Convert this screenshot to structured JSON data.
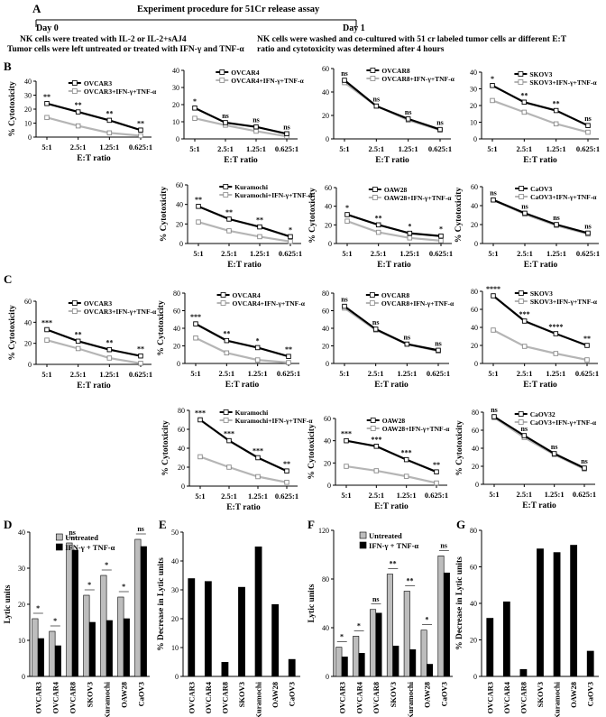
{
  "panelA": {
    "letter": "A",
    "title": "Experiment procedure for 51Cr release assay",
    "day0": "Day 0",
    "day1": "Day 1",
    "left1": "NK cells were treated with IL-2 or IL-2+sAJ4",
    "left2": "Tumor cells were left untreated or treated with IFN-γ and TNF-α",
    "right1": "NK cells were washed and co-cultured with 51 cr labeled tumor cells ar different E:T",
    "right2": "ratio and cytotoxicity was determined after 4 hours"
  },
  "colors": {
    "untreated": "#000000",
    "treated": "#b5b5b5"
  },
  "legend_suffix": "+IFN-γ+TNF-α",
  "chart_data": [
    {
      "panel": "B",
      "type": "line",
      "cell": "OVCAR3",
      "xlabel": "E:T ratio",
      "ylabel": "% Cytotoxicity",
      "categories": [
        "5:1",
        "2.5:1",
        "1.25:1",
        "0.625:1"
      ],
      "ylim": [
        0,
        40
      ],
      "yticks": [
        "0",
        "10",
        "20",
        "30",
        "40"
      ],
      "series": [
        {
          "name": "OVCAR3",
          "values": [
            24,
            18,
            12,
            5
          ]
        },
        {
          "name": "OVCAR3+IFN-γ+TNF-α",
          "values": [
            14,
            8,
            3,
            1
          ]
        }
      ],
      "sig": [
        "**",
        "**",
        "**",
        "**"
      ]
    },
    {
      "panel": "B",
      "type": "line",
      "cell": "OVCAR4",
      "xlabel": "E:T ratio",
      "ylabel": "",
      "categories": [
        "5:1",
        "2.5:1",
        "1.25:1",
        "0.625:1"
      ],
      "ylim": [
        0,
        40
      ],
      "yticks": [
        "0",
        "10",
        "20",
        "30",
        "40"
      ],
      "series": [
        {
          "name": "OVCAR4",
          "values": [
            18,
            9.5,
            7,
            3
          ]
        },
        {
          "name": "OVCAR4+IFN-γ+TNF-α",
          "values": [
            12,
            8,
            4.5,
            1.5
          ]
        }
      ],
      "sig": [
        "*",
        "ns",
        "ns",
        "ns"
      ]
    },
    {
      "panel": "B",
      "type": "line",
      "cell": "OVCAR8",
      "xlabel": "E:T ratio",
      "ylabel": "",
      "categories": [
        "5:1",
        "2.5:1",
        "1.25:1",
        "0.625:1"
      ],
      "ylim": [
        0,
        60
      ],
      "yticks": [
        "0",
        "20",
        "40",
        "60"
      ],
      "series": [
        {
          "name": "OVCAR8",
          "values": [
            50,
            28,
            17,
            8
          ]
        },
        {
          "name": "OVCAR8+IFN-γ+TNF-α",
          "values": [
            48,
            28,
            16,
            7.5
          ]
        }
      ],
      "sig": [
        "ns",
        "ns",
        "ns",
        "ns"
      ]
    },
    {
      "panel": "B",
      "type": "line",
      "cell": "SKOV3",
      "xlabel": "E:T ratio",
      "ylabel": "",
      "categories": [
        "5:1",
        "2.5:1",
        "1.25:1",
        "0.625:1"
      ],
      "ylim": [
        0,
        40
      ],
      "yticks": [
        "0",
        "10",
        "20",
        "30",
        "40"
      ],
      "series": [
        {
          "name": "SKOV3",
          "values": [
            32,
            22,
            17,
            8
          ]
        },
        {
          "name": "SKOV3+IFN-γ+TNF-α",
          "values": [
            23,
            16,
            9,
            4
          ]
        }
      ],
      "sig": [
        "*",
        "**",
        "**",
        "ns"
      ]
    },
    {
      "panel": "B",
      "type": "line",
      "cell": "Kuramochi",
      "xlabel": "E:T ratio",
      "ylabel": "% Cytotoxicity",
      "categories": [
        "5:1",
        "2.5:1",
        "1.25:1",
        "0.625:1"
      ],
      "ylim": [
        0,
        60
      ],
      "yticks": [
        "0",
        "20",
        "40",
        "60"
      ],
      "series": [
        {
          "name": "Kuramochi",
          "values": [
            38,
            25,
            17,
            7
          ]
        },
        {
          "name": "Kuramochi+IFN-γ+TNF-α",
          "values": [
            22,
            13,
            7,
            2
          ]
        }
      ],
      "sig": [
        "**",
        "**",
        "**",
        "*"
      ]
    },
    {
      "panel": "B",
      "type": "line",
      "cell": "OAW28",
      "xlabel": "E:T ratio",
      "ylabel": "% Cytotoxicity",
      "categories": [
        "5:1",
        "2.5:1",
        "1.25:1",
        "0.625:1"
      ],
      "ylim": [
        0,
        60
      ],
      "yticks": [
        "0",
        "20",
        "40",
        "60"
      ],
      "series": [
        {
          "name": "OAW28",
          "values": [
            31,
            20,
            11,
            8
          ]
        },
        {
          "name": "OAW28+IFN-γ+TNF-α",
          "values": [
            24,
            12,
            6,
            3
          ]
        }
      ],
      "sig": [
        "*",
        "**",
        "*",
        "*"
      ]
    },
    {
      "panel": "B",
      "type": "line",
      "cell": "CaOV3",
      "xlabel": "E:T ratio",
      "ylabel": "% Cytotoxicity",
      "categories": [
        "5:1",
        "2.5:1",
        "1.25:1",
        "0.625:1"
      ],
      "ylim": [
        0,
        60
      ],
      "yticks": [
        "0",
        "20",
        "40",
        "60"
      ],
      "series": [
        {
          "name": "CaOV3",
          "values": [
            46,
            32,
            20,
            11
          ]
        },
        {
          "name": "CaOV3+IFN-γ+TNF-α",
          "values": [
            46,
            31,
            19,
            10
          ]
        }
      ],
      "sig": [
        "ns",
        "ns",
        "ns",
        "ns"
      ]
    },
    {
      "panel": "C",
      "type": "line",
      "cell": "OVCAR3",
      "xlabel": "E:T ratio",
      "ylabel": "% Cytotoxicity",
      "categories": [
        "5:1",
        "2.5:1",
        "1.25:1",
        "0.625:1"
      ],
      "ylim": [
        0,
        60
      ],
      "yticks": [
        "0",
        "20",
        "40",
        "60"
      ],
      "series": [
        {
          "name": "OVCAR3",
          "values": [
            33,
            22,
            14,
            8
          ]
        },
        {
          "name": "OVCAR3+IFN-γ+TNF-α",
          "values": [
            23,
            15,
            6,
            1
          ]
        }
      ],
      "sig": [
        "***",
        "**",
        "**",
        "**"
      ]
    },
    {
      "panel": "C",
      "type": "line",
      "cell": "OVCAR4",
      "xlabel": "E:T ratio",
      "ylabel": "% Cytotoxicity",
      "categories": [
        "5:1",
        "2.5:1",
        "1.25:1",
        "0.625:1"
      ],
      "ylim": [
        0,
        80
      ],
      "yticks": [
        "0",
        "20",
        "40",
        "60",
        "80"
      ],
      "series": [
        {
          "name": "OVCAR4",
          "values": [
            45,
            26,
            18,
            8
          ]
        },
        {
          "name": "OVCAR4+IFN-γ+TNF-α",
          "values": [
            29,
            12,
            4,
            1
          ]
        }
      ],
      "sig": [
        "***",
        "**",
        "*",
        "**"
      ]
    },
    {
      "panel": "C",
      "type": "line",
      "cell": "OVCAR8",
      "xlabel": "E:T ratio",
      "ylabel": "",
      "categories": [
        "5:1",
        "2.5:1",
        "1.25:1",
        "0.625:1"
      ],
      "ylim": [
        0,
        80
      ],
      "yticks": [
        "0",
        "20",
        "40",
        "60",
        "80"
      ],
      "series": [
        {
          "name": "OVCAR8",
          "values": [
            65,
            39,
            22,
            15
          ]
        },
        {
          "name": "OVCAR8+IFN-γ+TNF-α",
          "values": [
            63,
            38,
            22,
            14
          ]
        }
      ],
      "sig": [
        "ns",
        "ns",
        "ns",
        "ns"
      ]
    },
    {
      "panel": "C",
      "type": "line",
      "cell": "SKOV3",
      "xlabel": "E:T ratio",
      "ylabel": "",
      "categories": [
        "5:1",
        "2.5:1",
        "1.25:1",
        "0.625:1"
      ],
      "ylim": [
        0,
        80
      ],
      "yticks": [
        "0",
        "20",
        "40",
        "60",
        "80"
      ],
      "series": [
        {
          "name": "SKOV3",
          "values": [
            75,
            47,
            33,
            20
          ]
        },
        {
          "name": "SKOV3+IFN-γ+TNF-α",
          "values": [
            37,
            19,
            11,
            4
          ]
        }
      ],
      "sig": [
        "****",
        "***",
        "****",
        "**"
      ]
    },
    {
      "panel": "C",
      "type": "line",
      "cell": "Kuramochi",
      "xlabel": "E:T ratio",
      "ylabel": "% Cytotoxicity",
      "categories": [
        "5:1",
        "2.5:1",
        "1.25:1",
        "0.625:1"
      ],
      "ylim": [
        0,
        80
      ],
      "yticks": [
        "0",
        "20",
        "40",
        "60",
        "80"
      ],
      "series": [
        {
          "name": "Kuramochi",
          "values": [
            70,
            48,
            30,
            16
          ]
        },
        {
          "name": "Kuramochi+IFN-γ+TNF-α",
          "values": [
            31,
            20,
            10,
            4
          ]
        }
      ],
      "sig": [
        "***",
        "***",
        "***",
        "**"
      ]
    },
    {
      "panel": "C",
      "type": "line",
      "cell": "OAW28",
      "xlabel": "E:T ratio",
      "ylabel": "% Cytotoxicity",
      "categories": [
        "5:1",
        "2.5:1",
        "1.25:1",
        "0.625:1"
      ],
      "ylim": [
        0,
        60
      ],
      "yticks": [
        "0",
        "20",
        "40",
        "60"
      ],
      "series": [
        {
          "name": "OAW28",
          "values": [
            40,
            35,
            23,
            12
          ]
        },
        {
          "name": "OAW28+IFN-γ+TNF-α",
          "values": [
            17,
            13,
            8,
            2
          ]
        }
      ],
      "sig": [
        "***",
        "***",
        "***",
        "**"
      ]
    },
    {
      "panel": "C",
      "type": "line",
      "cell": "CaOV32",
      "xlabel": "E:T ratio",
      "ylabel": "% Cytotoxicity",
      "categories": [
        "5:1",
        "2.5:1",
        "1.25:1",
        "0.625:1"
      ],
      "ylim": [
        0,
        80
      ],
      "yticks": [
        "0",
        "20",
        "40",
        "60",
        "80"
      ],
      "series": [
        {
          "name": "CaOV32",
          "values": [
            75,
            54,
            34,
            18
          ]
        },
        {
          "name": "CaOV3+IFN-γ+TNF-α",
          "values": [
            74,
            52,
            33,
            17
          ]
        }
      ],
      "sig": [
        "ns",
        "ns",
        "ns",
        "ns"
      ]
    },
    {
      "panel": "D",
      "type": "bar",
      "ylabel": "Lytic units",
      "categories": [
        "OVCAR3",
        "OVCAR4",
        "OVCAR8",
        "SKOV3",
        "Kuramochi",
        "OAW28",
        "CaOV3"
      ],
      "ylim": [
        0,
        40
      ],
      "yticks": [
        "0",
        "10",
        "20",
        "30",
        "40"
      ],
      "legend": [
        "Untreated",
        "IFN-γ + TNF-α"
      ],
      "series": [
        {
          "name": "Untreated",
          "values": [
            16,
            12.5,
            37,
            22.5,
            28,
            22,
            38
          ]
        },
        {
          "name": "IFN-γ + TNF-α",
          "values": [
            10.5,
            8.5,
            35,
            15,
            15.5,
            16,
            36
          ]
        }
      ],
      "sig": [
        "*",
        "*",
        "ns",
        "*",
        "*",
        "*",
        "ns"
      ]
    },
    {
      "panel": "E",
      "type": "bar",
      "ylabel": "% Decrease in Lytic units",
      "categories": [
        "OVCAR3",
        "OVCAR4",
        "OVCAR8",
        "SKOV3",
        "Kuramochi",
        "OAW28",
        "CaOV3"
      ],
      "ylim": [
        0,
        50
      ],
      "yticks": [
        "0",
        "10",
        "20",
        "30",
        "40",
        "50"
      ],
      "series": [
        {
          "values": [
            34,
            33,
            5,
            31,
            45,
            25,
            6
          ]
        }
      ]
    },
    {
      "panel": "F",
      "type": "bar",
      "ylabel": "Lytic units",
      "categories": [
        "OVCAR3",
        "OVCAR4",
        "OVCAR8",
        "SKOV3",
        "Kuramochi",
        "OAW28",
        "CaOV3"
      ],
      "ylim": [
        0,
        120
      ],
      "yticks": [
        "0",
        "40",
        "80",
        "120"
      ],
      "legend": [
        "Untreated",
        "IFN-γ + TNF-α"
      ],
      "series": [
        {
          "name": "Untreated",
          "values": [
            24,
            33,
            55,
            84,
            70,
            38,
            99
          ]
        },
        {
          "name": "IFN-γ + TNF-α",
          "values": [
            16,
            19,
            52,
            25,
            22,
            10,
            85
          ]
        }
      ],
      "sig": [
        "*",
        "*",
        "ns",
        "**",
        "**",
        "*",
        "ns"
      ]
    },
    {
      "panel": "G",
      "type": "bar",
      "ylabel": "% Decrease in Lytic units",
      "categories": [
        "OVCAR3",
        "OVCAR4",
        "OVCAR8",
        "SKOV3",
        "Kuramochi",
        "OAW28",
        "CaOV3"
      ],
      "ylim": [
        0,
        80
      ],
      "yticks": [
        "0",
        "20",
        "40",
        "60",
        "80"
      ],
      "series": [
        {
          "values": [
            32,
            41,
            4,
            70,
            68,
            72,
            14
          ]
        }
      ]
    }
  ]
}
